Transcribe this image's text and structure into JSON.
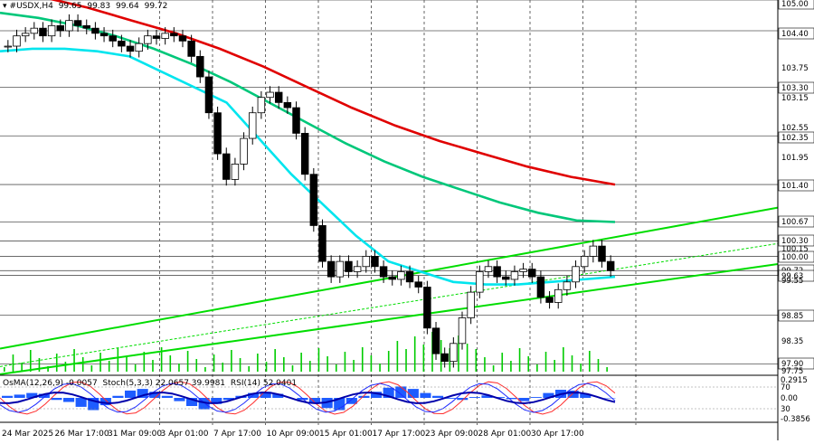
{
  "header": {
    "symbol": "#USDX,H4",
    "open": "99.65",
    "high": "99.83",
    "low": "99.64",
    "close": "99.72"
  },
  "indicator_header": {
    "osma": "OsMA(12,26,9) -0.0057",
    "stoch": "Stoch(5,3,3) 22.0657 39.9981",
    "rsi": "RSI(14) 52.0401"
  },
  "colors": {
    "background": "#ffffff",
    "grid": "#000000",
    "level_line": "#555555",
    "ma_fast": "#00e5ee",
    "ma_mid": "#00c77a",
    "ma_slow": "#e00000",
    "channel": "#00dd00",
    "volume": "#00cc00",
    "candle": "#000000",
    "osma_hist": "#1e5cff",
    "stoch_main": "#1e2bff",
    "stoch_signal": "#ff2b2b",
    "rsi": "#0000aa",
    "label_bg": "#ffffff"
  },
  "chart_data": {
    "type": "candlestick",
    "title": "#USDX,H4",
    "ylim": [
      97.75,
      105.0
    ],
    "price_axis": [
      "105.00",
      "104.40",
      "103.75",
      "103.30",
      "103.15",
      "102.55",
      "102.35",
      "101.95",
      "101.40",
      "100.67",
      "100.30",
      "100.15",
      "100.00",
      "99.72",
      "99.63",
      "99.55",
      "98.85",
      "98.35",
      "97.90",
      "97.75"
    ],
    "key_levels": [
      {
        "label": "105.00",
        "value": 105.0
      },
      {
        "label": "104.40",
        "value": 104.4
      },
      {
        "label": "103.30",
        "value": 103.3
      },
      {
        "label": "102.35",
        "value": 102.35
      },
      {
        "label": "101.40",
        "value": 101.4
      },
      {
        "label": "100.67",
        "value": 100.67
      },
      {
        "label": "100.30",
        "value": 100.3
      },
      {
        "label": "100.00",
        "value": 100.0
      },
      {
        "label": "99.72",
        "value": 99.72
      },
      {
        "label": "99.63",
        "value": 99.63
      },
      {
        "label": "98.85",
        "value": 98.85
      },
      {
        "label": "97.90",
        "value": 97.9
      }
    ],
    "time_axis": [
      "24 Mar 2025",
      "26 Mar 17:00",
      "31 Mar 09:00",
      "3 Apr 01:00",
      "7 Apr 17:00",
      "10 Apr 09:00",
      "15 Apr 01:00",
      "17 Apr 17:00",
      "23 Apr 09:00",
      "28 Apr 01:00",
      "30 Apr 17:00"
    ],
    "closes": [
      104.1,
      104.3,
      104.35,
      104.45,
      104.3,
      104.5,
      104.4,
      104.6,
      104.5,
      104.45,
      104.35,
      104.3,
      104.2,
      104.1,
      104.0,
      104.15,
      104.3,
      104.25,
      104.35,
      104.3,
      104.2,
      103.9,
      103.5,
      102.8,
      102.0,
      101.5,
      101.8,
      102.3,
      102.8,
      103.1,
      103.2,
      103.0,
      102.9,
      102.4,
      101.6,
      100.6,
      99.9,
      99.6,
      99.9,
      99.7,
      99.8,
      100.0,
      99.8,
      99.6,
      99.55,
      99.7,
      99.5,
      99.4,
      98.6,
      98.1,
      97.95,
      98.3,
      98.8,
      99.3,
      99.7,
      99.8,
      99.6,
      99.55,
      99.7,
      99.75,
      99.6,
      99.2,
      99.1,
      99.35,
      99.5,
      99.8,
      100.0,
      100.2,
      99.9,
      99.72
    ],
    "ma_fast": [
      104.0,
      104.05,
      104.05,
      104.0,
      103.9,
      103.6,
      103.3,
      103.0,
      102.3,
      101.6,
      101.0,
      100.4,
      99.9,
      99.7,
      99.5,
      99.45,
      99.45,
      99.5,
      99.55,
      99.6
    ],
    "ma_mid": [
      104.75,
      104.65,
      104.5,
      104.3,
      104.05,
      103.75,
      103.4,
      103.0,
      102.6,
      102.2,
      101.85,
      101.55,
      101.3,
      101.05,
      100.85,
      100.7,
      100.67
    ],
    "ma_slow": [
      105.15,
      105.05,
      104.85,
      104.6,
      104.35,
      104.05,
      103.7,
      103.3,
      102.9,
      102.55,
      102.25,
      102.0,
      101.75,
      101.55,
      101.4
    ],
    "channel": [
      {
        "name": "",
        "from": 98.2,
        "to": 100.95
      },
      {
        "name": "",
        "from": 97.7,
        "to": 99.85
      },
      {
        "name": "",
        "from": 97.85,
        "to": 100.25
      }
    ],
    "indicator": {
      "osma_ticks": [
        "0.2915",
        "0.00",
        "-0.3856"
      ],
      "stoch_ticks": [
        "70",
        "30"
      ],
      "osma": [
        0.05,
        0.08,
        0.12,
        0.1,
        -0.05,
        -0.1,
        -0.22,
        -0.3,
        -0.18,
        0.05,
        0.18,
        0.22,
        0.15,
        0.05,
        -0.08,
        -0.2,
        -0.28,
        -0.15,
        -0.05,
        0.05,
        0.12,
        0.15,
        0.1,
        0.0,
        -0.05,
        -0.12,
        -0.25,
        -0.3,
        -0.15,
        0.05,
        0.15,
        0.25,
        0.28,
        0.22,
        0.12,
        0.05,
        -0.02,
        -0.05,
        0.02,
        0.06,
        0.02,
        -0.03,
        -0.08,
        0.02,
        0.12,
        0.2,
        0.18,
        0.1,
        0.0,
        -0.01
      ]
    }
  }
}
